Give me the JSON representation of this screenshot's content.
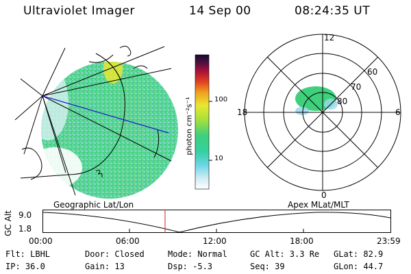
{
  "header": {
    "instrument": "Ultraviolet Imager",
    "date": "14 Sep 00",
    "time": "08:24:35 UT"
  },
  "colorbar": {
    "label": "photon cm⁻²s⁻¹",
    "ticks": [
      "100",
      "10"
    ]
  },
  "polar_plot": {
    "hour_labels": [
      "12",
      "18",
      "6",
      "0"
    ],
    "lat_labels": [
      "60",
      "70",
      "80"
    ]
  },
  "timeline": {
    "left_title": "Geographic Lat/Lon",
    "right_title": "Apex  MLat/MLT",
    "axis_title": "GC Alt",
    "y_labels": [
      "9.0",
      "1.8"
    ],
    "x_labels": [
      "00:00",
      "06:00",
      "12:00",
      "18:00",
      "23:59"
    ],
    "current_fraction": 0.351
  },
  "status": {
    "filter": "Flt: LBHL",
    "ip": "IP: 36.0",
    "door": "Door: Closed",
    "gain": "Gain: 13",
    "mode": "Mode: Normal",
    "dsp": "Dsp:    -5.3",
    "gc_alt": "GC Alt: 3.3 Re",
    "seq": "Seq: 39",
    "glat": "GLat:  82.9",
    "glon": "GLon:  44.7"
  },
  "colors": {
    "aurora_main": "#3fd07c",
    "aurora_bright": "#e8e832",
    "aurora_dim": "#9ed8ec",
    "grid_line": "#000000",
    "meridian_line": "#1a1acc",
    "time_marker": "#cc2222"
  }
}
